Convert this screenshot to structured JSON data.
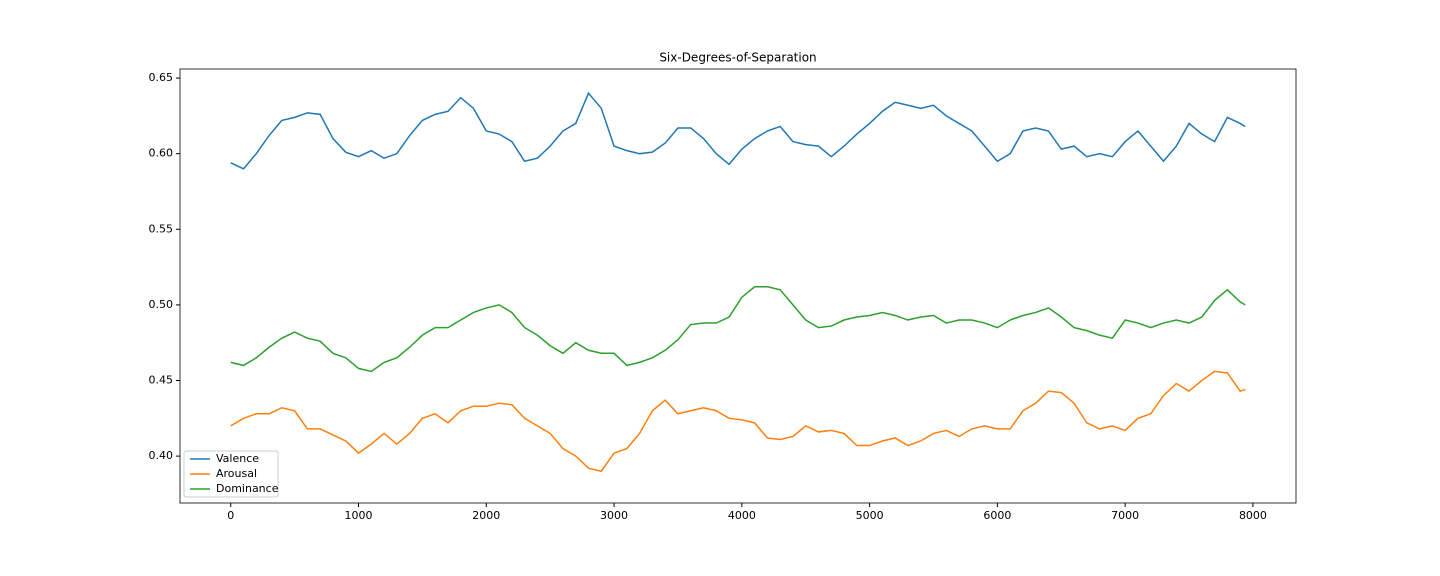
{
  "chart_data": {
    "type": "line",
    "title": "Six-Degrees-of-Separation",
    "x": [
      0,
      100,
      200,
      300,
      400,
      500,
      600,
      700,
      800,
      900,
      1000,
      1100,
      1200,
      1300,
      1400,
      1500,
      1600,
      1700,
      1800,
      1900,
      2000,
      2100,
      2200,
      2300,
      2400,
      2500,
      2600,
      2700,
      2800,
      2900,
      3000,
      3100,
      3200,
      3300,
      3400,
      3500,
      3600,
      3700,
      3800,
      3900,
      4000,
      4100,
      4200,
      4300,
      4400,
      4500,
      4600,
      4700,
      4800,
      4900,
      5000,
      5100,
      5200,
      5300,
      5400,
      5500,
      5600,
      5700,
      5800,
      5900,
      6000,
      6100,
      6200,
      6300,
      6400,
      6500,
      6600,
      6700,
      6800,
      6900,
      7000,
      7100,
      7200,
      7300,
      7400,
      7500,
      7600,
      7700,
      7800,
      7900,
      7940
    ],
    "series": [
      {
        "name": "Valence",
        "color": "#1f77b4",
        "values": [
          0.594,
          0.59,
          0.6,
          0.612,
          0.622,
          0.624,
          0.627,
          0.626,
          0.61,
          0.601,
          0.598,
          0.602,
          0.597,
          0.6,
          0.612,
          0.622,
          0.626,
          0.628,
          0.637,
          0.63,
          0.615,
          0.613,
          0.608,
          0.595,
          0.597,
          0.605,
          0.615,
          0.62,
          0.64,
          0.63,
          0.605,
          0.602,
          0.6,
          0.601,
          0.607,
          0.617,
          0.617,
          0.61,
          0.6,
          0.593,
          0.603,
          0.61,
          0.615,
          0.618,
          0.608,
          0.606,
          0.605,
          0.598,
          0.605,
          0.613,
          0.62,
          0.628,
          0.634,
          0.632,
          0.63,
          0.632,
          0.625,
          0.62,
          0.615,
          0.605,
          0.595,
          0.6,
          0.615,
          0.617,
          0.615,
          0.603,
          0.605,
          0.598,
          0.6,
          0.598,
          0.608,
          0.615,
          0.605,
          0.595,
          0.605,
          0.62,
          0.613,
          0.608,
          0.624,
          0.62,
          0.618
        ]
      },
      {
        "name": "Arousal",
        "color": "#ff7f0e",
        "values": [
          0.42,
          0.425,
          0.428,
          0.428,
          0.432,
          0.43,
          0.418,
          0.418,
          0.414,
          0.41,
          0.402,
          0.408,
          0.415,
          0.408,
          0.415,
          0.425,
          0.428,
          0.422,
          0.43,
          0.433,
          0.433,
          0.435,
          0.434,
          0.425,
          0.42,
          0.415,
          0.405,
          0.4,
          0.392,
          0.39,
          0.402,
          0.405,
          0.415,
          0.43,
          0.437,
          0.428,
          0.43,
          0.432,
          0.43,
          0.425,
          0.424,
          0.422,
          0.412,
          0.411,
          0.413,
          0.42,
          0.416,
          0.417,
          0.415,
          0.407,
          0.407,
          0.41,
          0.412,
          0.407,
          0.41,
          0.415,
          0.417,
          0.413,
          0.418,
          0.42,
          0.418,
          0.418,
          0.43,
          0.435,
          0.443,
          0.442,
          0.435,
          0.422,
          0.418,
          0.42,
          0.417,
          0.425,
          0.428,
          0.44,
          0.448,
          0.443,
          0.45,
          0.456,
          0.455,
          0.443,
          0.444
        ]
      },
      {
        "name": "Dominance",
        "color": "#2ca02c",
        "values": [
          0.462,
          0.46,
          0.465,
          0.472,
          0.478,
          0.482,
          0.478,
          0.476,
          0.468,
          0.465,
          0.458,
          0.456,
          0.462,
          0.465,
          0.472,
          0.48,
          0.485,
          0.485,
          0.49,
          0.495,
          0.498,
          0.5,
          0.495,
          0.485,
          0.48,
          0.473,
          0.468,
          0.475,
          0.47,
          0.468,
          0.468,
          0.46,
          0.462,
          0.465,
          0.47,
          0.477,
          0.487,
          0.488,
          0.488,
          0.492,
          0.505,
          0.512,
          0.512,
          0.51,
          0.5,
          0.49,
          0.485,
          0.486,
          0.49,
          0.492,
          0.493,
          0.495,
          0.493,
          0.49,
          0.492,
          0.493,
          0.488,
          0.49,
          0.49,
          0.488,
          0.485,
          0.49,
          0.493,
          0.495,
          0.498,
          0.492,
          0.485,
          0.483,
          0.48,
          0.478,
          0.49,
          0.488,
          0.485,
          0.488,
          0.49,
          0.488,
          0.492,
          0.503,
          0.51,
          0.502,
          0.5
        ]
      }
    ],
    "xlim": [
      -397,
      8337
    ],
    "xticks": [
      0,
      1000,
      2000,
      3000,
      4000,
      5000,
      6000,
      7000,
      8000
    ],
    "ylim": [
      0.369,
      0.656
    ],
    "yticks": [
      {
        "value": 0.4,
        "label": "0.40"
      },
      0.45,
      {
        "value": 0.5,
        "label": "0.50"
      },
      0.55,
      {
        "value": 0.6,
        "label": "0.60"
      },
      0.65
    ],
    "grid": false,
    "legend": "lower left"
  }
}
